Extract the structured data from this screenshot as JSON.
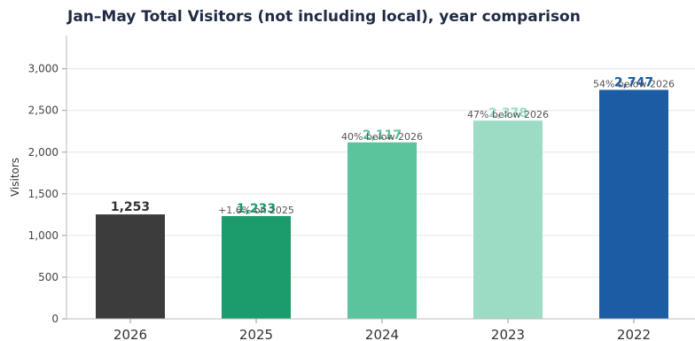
{
  "chart_data": {
    "type": "bar",
    "title": "Jan–May Total Visitors (not including local), year comparison",
    "xlabel": "",
    "ylabel": "Visitors",
    "ylim": [
      0,
      3400
    ],
    "yticks": [
      0,
      500,
      1000,
      1500,
      2000,
      2500,
      3000
    ],
    "ytick_labels": [
      "0",
      "500",
      "1,000",
      "1,500",
      "2,000",
      "2,500",
      "3,000"
    ],
    "grid": "horizontal",
    "categories": [
      "2026",
      "2025",
      "2024",
      "2023",
      "2022"
    ],
    "values": [
      1253,
      1233,
      2117,
      2378,
      2747
    ],
    "value_labels": [
      "1,253",
      "1,233",
      "2,117",
      "2,378",
      "2,747"
    ],
    "annotations": [
      "",
      "+1.6% on 2025",
      "40% below 2026",
      "47% below 2026",
      "54% below 2026"
    ],
    "colors": [
      "#3c3c3c",
      "#1c9c6c",
      "#5cc49c",
      "#9cdcc4",
      "#1c5ca4"
    ],
    "label_colors": [
      "#333333",
      "#1c9c6c",
      "#5cc49c",
      "#9cdcc4",
      "#1c5ca4"
    ]
  }
}
